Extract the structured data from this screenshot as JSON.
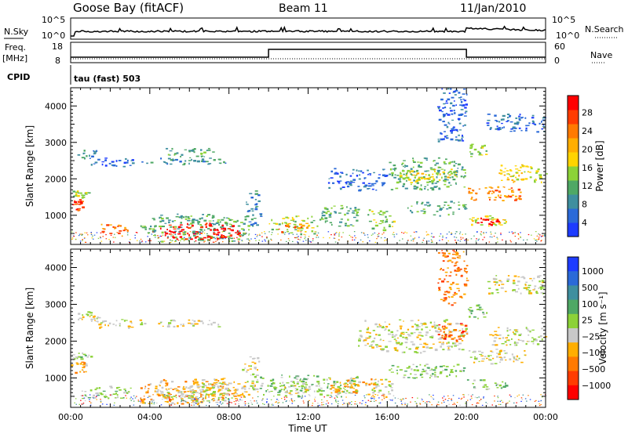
{
  "header": {
    "site": "Goose Bay (fitACF)",
    "beam": "Beam 11",
    "date": "11/Jan/2010"
  },
  "top_panels": {
    "nsky_label": "N.Sky",
    "nsky_ticks": [
      "10^5",
      "10^0"
    ],
    "nsearch_label": "N.Search",
    "nsearch_ticks": [
      "10^5",
      "10^0"
    ],
    "freq_label": "Freq.",
    "freq_unit": "[MHz]",
    "freq_ticks": [
      "18",
      "8"
    ],
    "nave_label": "Nave",
    "nave_ticks": [
      "60",
      "0"
    ],
    "cpid_label": "CPID",
    "cpid_value": "tau (fast) 503"
  },
  "chart_data": [
    {
      "type": "heatmap",
      "title": "",
      "ylabel": "Slant Range [km]",
      "xlabel": "",
      "x_unit": "hours UT",
      "xlim": [
        0,
        24
      ],
      "ylim": [
        200,
        4500
      ],
      "yticks": [
        1000,
        2000,
        3000,
        4000
      ],
      "colorbar": {
        "label": "Power [dB]",
        "ticks": [
          "4",
          "8",
          "12",
          "16",
          "20",
          "24",
          "28"
        ],
        "colors": [
          "#1e3cff",
          "#2b6ad8",
          "#3f8f9f",
          "#4fa865",
          "#8cd238",
          "#ffd400",
          "#ffae00",
          "#ff7a00",
          "#ff3c00",
          "#ff0000"
        ]
      },
      "regions": [
        {
          "t0": 0.0,
          "t1": 0.7,
          "r0": 1150,
          "r1": 1450,
          "level": 8
        },
        {
          "t0": 0.0,
          "t1": 1.0,
          "r0": 1500,
          "r1": 1700,
          "level": 4
        },
        {
          "t0": 0.2,
          "t1": 1.4,
          "r0": 2550,
          "r1": 2850,
          "level": 2
        },
        {
          "t0": 1.0,
          "t1": 3.6,
          "r0": 2350,
          "r1": 2600,
          "level": 1
        },
        {
          "t0": 3.5,
          "t1": 7.8,
          "r0": 2400,
          "r1": 2600,
          "level": 2
        },
        {
          "t0": 4.8,
          "t1": 7.2,
          "r0": 2600,
          "r1": 2850,
          "level": 3
        },
        {
          "t0": 1.5,
          "t1": 3.0,
          "r0": 500,
          "r1": 800,
          "level": 7
        },
        {
          "t0": 3.5,
          "t1": 9.0,
          "r0": 300,
          "r1": 1050,
          "level": 3
        },
        {
          "t0": 4.5,
          "t1": 8.6,
          "r0": 350,
          "r1": 800,
          "level": 9
        },
        {
          "t0": 8.8,
          "t1": 9.6,
          "r0": 700,
          "r1": 1700,
          "level": 2
        },
        {
          "t0": 10.0,
          "t1": 12.5,
          "r0": 500,
          "r1": 1000,
          "level": 4
        },
        {
          "t0": 10.5,
          "t1": 12.0,
          "r0": 550,
          "r1": 800,
          "level": 7
        },
        {
          "t0": 12.5,
          "t1": 14.5,
          "r0": 650,
          "r1": 1300,
          "level": 3
        },
        {
          "t0": 15.0,
          "t1": 16.3,
          "r0": 600,
          "r1": 1200,
          "level": 4
        },
        {
          "t0": 13.0,
          "t1": 16.0,
          "r0": 1700,
          "r1": 2300,
          "level": 1
        },
        {
          "t0": 16.0,
          "t1": 20.0,
          "r0": 1700,
          "r1": 2600,
          "level": 3
        },
        {
          "t0": 16.5,
          "t1": 19.5,
          "r0": 1900,
          "r1": 2300,
          "level": 5
        },
        {
          "t0": 17.0,
          "t1": 20.0,
          "r0": 1000,
          "r1": 1400,
          "level": 3
        },
        {
          "t0": 18.5,
          "t1": 20.0,
          "r0": 3000,
          "r1": 4500,
          "level": 1
        },
        {
          "t0": 20.0,
          "t1": 22.0,
          "r0": 700,
          "r1": 1000,
          "level": 5
        },
        {
          "t0": 20.5,
          "t1": 21.6,
          "r0": 750,
          "r1": 950,
          "level": 9
        },
        {
          "t0": 20.0,
          "t1": 23.0,
          "r0": 1400,
          "r1": 1800,
          "level": 7
        },
        {
          "t0": 21.5,
          "t1": 24.0,
          "r0": 1900,
          "r1": 2400,
          "level": 5
        },
        {
          "t0": 21.0,
          "t1": 24.0,
          "r0": 3300,
          "r1": 3800,
          "level": 1
        },
        {
          "t0": 20.0,
          "t1": 21.0,
          "r0": 2600,
          "r1": 3000,
          "level": 4
        }
      ]
    },
    {
      "type": "heatmap",
      "title": "",
      "ylabel": "Slant Range [km]",
      "xlabel": "Time UT",
      "x_unit": "hours UT",
      "xlim": [
        0,
        24
      ],
      "ylim": [
        200,
        4500
      ],
      "yticks": [
        1000,
        2000,
        3000,
        4000
      ],
      "xticks": [
        "00:00",
        "04:00",
        "08:00",
        "12:00",
        "16:00",
        "20:00",
        "00:00"
      ],
      "colorbar": {
        "label": "Velocity [m s⁻¹]",
        "ticks": [
          "1000",
          "500",
          "100",
          "25",
          "−25",
          "−100",
          "−500",
          "−1000"
        ],
        "colors": [
          "#1e3cff",
          "#2b6ad8",
          "#3f8f9f",
          "#4fa865",
          "#8cd238",
          "#c8c8c8",
          "#ffae00",
          "#ff7a00",
          "#ff3c00",
          "#ff0000"
        ]
      },
      "regions": [
        {
          "t0": 0.0,
          "t1": 0.8,
          "r0": 1150,
          "r1": 1450,
          "level": 6
        },
        {
          "t0": 0.0,
          "t1": 1.0,
          "r0": 1500,
          "r1": 1700,
          "level": 4
        },
        {
          "t0": 0.2,
          "t1": 1.4,
          "r0": 2550,
          "r1": 2850,
          "level": 5
        },
        {
          "t0": 1.0,
          "t1": 3.6,
          "r0": 2350,
          "r1": 2600,
          "level": 5
        },
        {
          "t0": 3.5,
          "t1": 7.8,
          "r0": 2400,
          "r1": 2600,
          "level": 5
        },
        {
          "t0": 0.5,
          "t1": 3.0,
          "r0": 400,
          "r1": 800,
          "level": 4
        },
        {
          "t0": 3.5,
          "t1": 9.0,
          "r0": 300,
          "r1": 1000,
          "level": 6
        },
        {
          "t0": 4.5,
          "t1": 8.5,
          "r0": 350,
          "r1": 800,
          "level": 5
        },
        {
          "t0": 6.0,
          "t1": 8.0,
          "r0": 500,
          "r1": 900,
          "level": 5
        },
        {
          "t0": 8.6,
          "t1": 9.5,
          "r0": 600,
          "r1": 1600,
          "level": 5
        },
        {
          "t0": 9.5,
          "t1": 14.5,
          "r0": 500,
          "r1": 1100,
          "level": 4
        },
        {
          "t0": 10.5,
          "t1": 12.0,
          "r0": 550,
          "r1": 850,
          "level": 5
        },
        {
          "t0": 13.0,
          "t1": 15.5,
          "r0": 600,
          "r1": 1000,
          "level": 6
        },
        {
          "t0": 15.0,
          "t1": 16.3,
          "r0": 500,
          "r1": 1000,
          "level": 5
        },
        {
          "t0": 14.5,
          "t1": 20.0,
          "r0": 1700,
          "r1": 2600,
          "level": 5
        },
        {
          "t0": 18.5,
          "t1": 20.0,
          "r0": 2000,
          "r1": 2500,
          "level": 8
        },
        {
          "t0": 16.0,
          "t1": 20.0,
          "r0": 1000,
          "r1": 1400,
          "level": 4
        },
        {
          "t0": 18.5,
          "t1": 20.0,
          "r0": 3000,
          "r1": 4500,
          "level": 7
        },
        {
          "t0": 20.0,
          "t1": 22.0,
          "r0": 700,
          "r1": 1000,
          "level": 4
        },
        {
          "t0": 20.0,
          "t1": 23.0,
          "r0": 1400,
          "r1": 1800,
          "level": 5
        },
        {
          "t0": 21.0,
          "t1": 24.0,
          "r0": 1900,
          "r1": 2400,
          "level": 5
        },
        {
          "t0": 21.0,
          "t1": 24.0,
          "r0": 3300,
          "r1": 3800,
          "level": 5
        },
        {
          "t0": 20.0,
          "t1": 21.0,
          "r0": 2600,
          "r1": 3000,
          "level": 4
        }
      ]
    }
  ]
}
